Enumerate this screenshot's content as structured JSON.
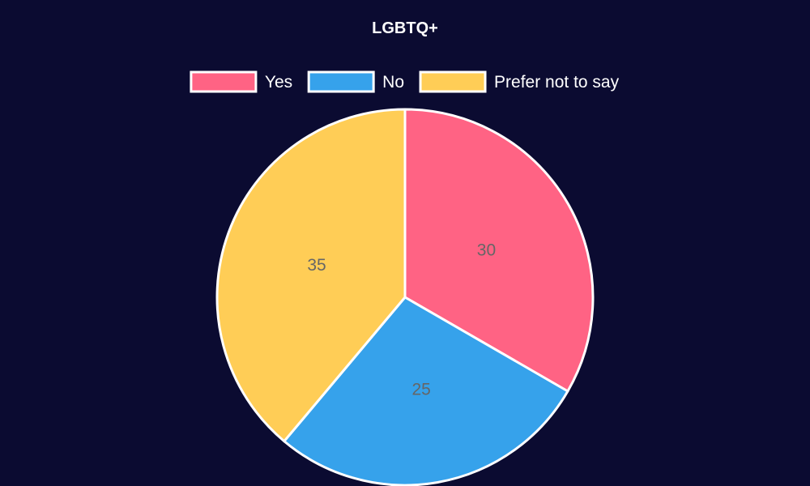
{
  "chart_data": {
    "type": "pie",
    "title": "LGBTQ+",
    "legend_position": "top",
    "categories": [
      "Yes",
      "No",
      "Prefer not to say"
    ],
    "values": [
      30,
      25,
      35
    ],
    "colors": [
      "#ff6384",
      "#36a2eb",
      "#ffcd56"
    ],
    "slice_border_color": "#ffffff",
    "label_color": "#666666"
  },
  "background_color": "#0b0b31"
}
